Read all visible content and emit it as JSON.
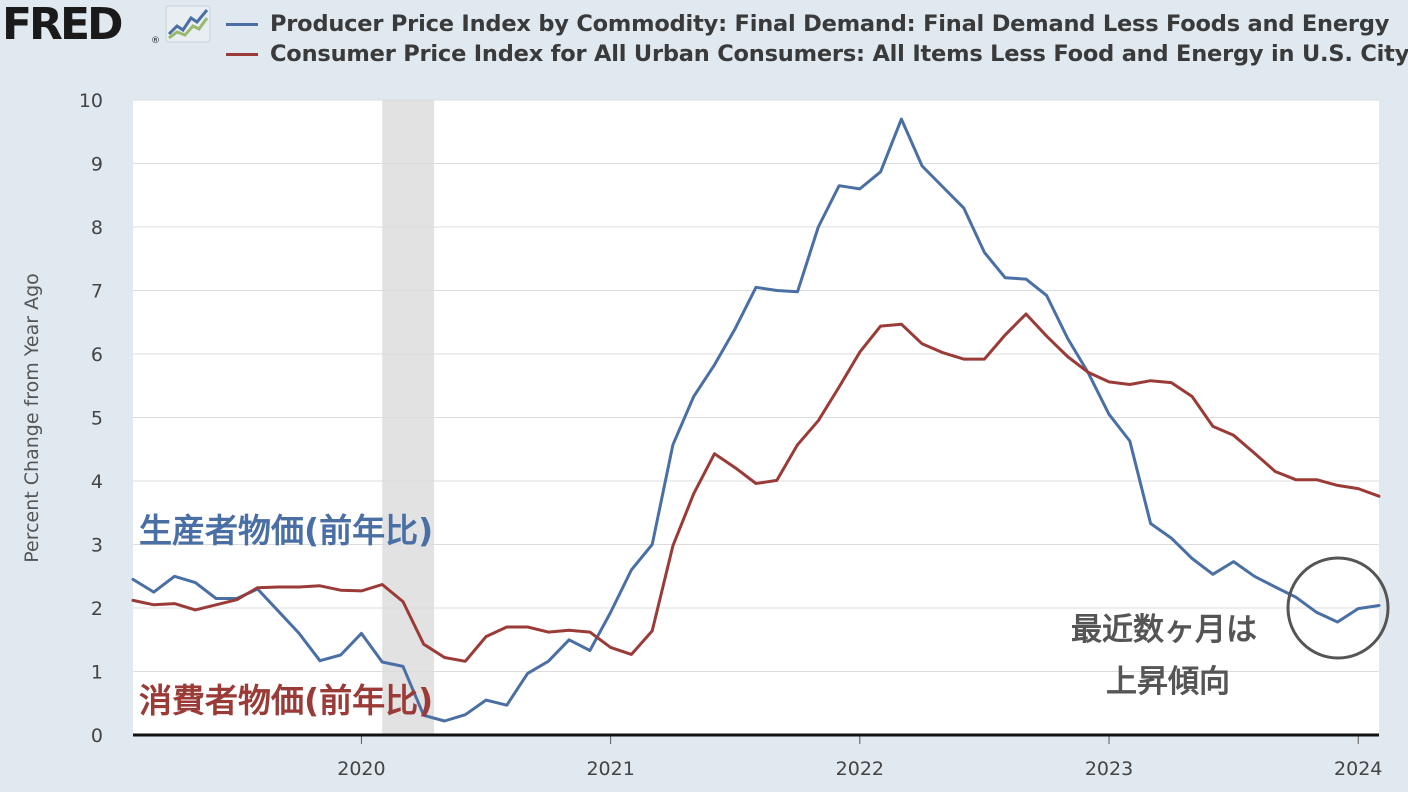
{
  "header": {
    "logo_text": "FRED",
    "logo_mark": "®",
    "logo_icon": "line-chart-icon"
  },
  "colors": {
    "background": "#e1e9f0",
    "plot_background": "#ffffff",
    "ppi": "#4a6fa5",
    "cpi": "#9a3b37",
    "recession": "#e2e2e2",
    "grid": "#dcdcdc",
    "annotation_circle": "#555555"
  },
  "chart_data": {
    "type": "line",
    "ylabel": "Percent Change from Year Ago",
    "ylim": [
      0,
      10
    ],
    "yticks": [
      "0",
      "1",
      "2",
      "3",
      "4",
      "5",
      "6",
      "7",
      "8",
      "9",
      "10"
    ],
    "xrange": [
      "2019-02",
      "2024-02"
    ],
    "xticks": [
      "2020",
      "2021",
      "2022",
      "2023",
      "2024"
    ],
    "grid": "horizontal",
    "recession": {
      "start": "2020-02",
      "end": "2020-04"
    },
    "x": [
      "2019-02",
      "2019-03",
      "2019-04",
      "2019-05",
      "2019-06",
      "2019-07",
      "2019-08",
      "2019-09",
      "2019-10",
      "2019-11",
      "2019-12",
      "2020-01",
      "2020-02",
      "2020-03",
      "2020-04",
      "2020-05",
      "2020-06",
      "2020-07",
      "2020-08",
      "2020-09",
      "2020-10",
      "2020-11",
      "2020-12",
      "2021-01",
      "2021-02",
      "2021-03",
      "2021-04",
      "2021-05",
      "2021-06",
      "2021-07",
      "2021-08",
      "2021-09",
      "2021-10",
      "2021-11",
      "2021-12",
      "2022-01",
      "2022-02",
      "2022-03",
      "2022-04",
      "2022-05",
      "2022-06",
      "2022-07",
      "2022-08",
      "2022-09",
      "2022-10",
      "2022-11",
      "2022-12",
      "2023-01",
      "2023-02",
      "2023-03",
      "2023-04",
      "2023-05",
      "2023-06",
      "2023-07",
      "2023-08",
      "2023-09",
      "2023-10",
      "2023-11",
      "2023-12",
      "2024-01",
      "2024-02"
    ],
    "series": [
      {
        "name": "Producer Price Index by Commodity: Final Demand: Final Demand Less Foods and Energy",
        "color": "#4a6fa5",
        "values": [
          2.45,
          2.25,
          2.5,
          2.4,
          2.15,
          2.15,
          2.3,
          1.95,
          1.6,
          1.17,
          1.26,
          1.6,
          1.15,
          1.08,
          0.31,
          0.22,
          0.32,
          0.55,
          0.47,
          0.97,
          1.16,
          1.5,
          1.33,
          1.93,
          2.6,
          3.0,
          4.57,
          5.33,
          5.83,
          6.4,
          7.05,
          7.0,
          6.98,
          8.0,
          8.65,
          8.6,
          8.87,
          9.7,
          8.96,
          8.63,
          8.3,
          7.6,
          7.2,
          7.18,
          6.92,
          6.25,
          5.7,
          5.05,
          4.63,
          3.33,
          3.1,
          2.78,
          2.53,
          2.73,
          2.5,
          2.33,
          2.17,
          1.93,
          1.78,
          1.99,
          2.04
        ]
      },
      {
        "name": "Consumer Price Index for All Urban Consumers: All Items Less Food and Energy in U.S. City Average",
        "color": "#9a3b37",
        "values": [
          2.12,
          2.05,
          2.07,
          1.97,
          2.05,
          2.13,
          2.32,
          2.33,
          2.33,
          2.35,
          2.28,
          2.27,
          2.37,
          2.1,
          1.43,
          1.22,
          1.16,
          1.55,
          1.7,
          1.7,
          1.62,
          1.65,
          1.62,
          1.38,
          1.27,
          1.64,
          2.98,
          3.8,
          4.43,
          4.21,
          3.96,
          4.01,
          4.57,
          4.95,
          5.48,
          6.03,
          6.44,
          6.47,
          6.16,
          6.02,
          5.92,
          5.92,
          6.3,
          6.63,
          6.28,
          5.96,
          5.71,
          5.56,
          5.52,
          5.58,
          5.55,
          5.33,
          4.86,
          4.72,
          4.44,
          4.15,
          4.02,
          4.02,
          3.93,
          3.88,
          3.76
        ]
      }
    ],
    "annotations": {
      "ppi_label": "生産者物価(前年比)",
      "cpi_label": "消費者物価(前年比)",
      "note_line1": "最近数ヶ月は",
      "note_line2": "上昇傾向"
    }
  }
}
